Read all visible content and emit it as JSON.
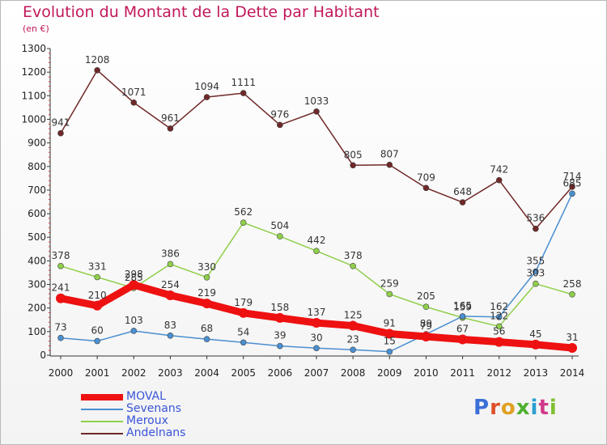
{
  "title": "Evolution du Montant de la Dette par Habitant",
  "subtitle": "(en €)",
  "logo_text": "Proxiti",
  "colors": {
    "title": "#c1185b",
    "MOVAL": "#ee1111",
    "Sevenans": "#4a8fd0",
    "Meroux": "#8fcf4a",
    "Andelnans": "#702828"
  },
  "chart_data": {
    "type": "line",
    "title": "Evolution du Montant de la Dette par Habitant",
    "ylabel": "(en €)",
    "ylim": [
      0,
      1300
    ],
    "yticks": [
      0,
      100,
      200,
      300,
      400,
      500,
      600,
      700,
      800,
      900,
      1000,
      1100,
      1200,
      1300
    ],
    "grid": false,
    "legend_position": "bottom-left",
    "x": [
      2000,
      2001,
      2002,
      2003,
      2004,
      2005,
      2006,
      2007,
      2008,
      2009,
      2010,
      2011,
      2012,
      2013,
      2014
    ],
    "series": [
      {
        "name": "MOVAL",
        "values": [
          241,
          210,
          298,
          254,
          219,
          179,
          158,
          137,
          125,
          91,
          79,
          67,
          56,
          45,
          31
        ],
        "labels": [
          "241",
          "210",
          "298",
          "254",
          "219",
          "179",
          "158",
          "137",
          "125",
          "91",
          "79",
          "67",
          "56",
          "45",
          "31"
        ]
      },
      {
        "name": "Sevenans",
        "values": [
          73,
          60,
          103,
          83,
          68,
          54,
          39,
          30,
          23,
          15,
          89,
          165,
          162,
          355,
          685
        ],
        "labels": [
          "73",
          "60",
          "103",
          "83",
          "68",
          "54",
          "39",
          "30",
          "23",
          "15",
          "89",
          "165",
          "162",
          "355",
          "685"
        ]
      },
      {
        "name": "Meroux",
        "values": [
          378,
          331,
          285,
          386,
          330,
          562,
          504,
          442,
          378,
          259,
          205,
          159,
          122,
          303,
          258
        ],
        "labels": [
          "378",
          "331",
          "285",
          "386",
          "330",
          "562",
          "504",
          "442",
          "378",
          "259",
          "205",
          "159",
          "122",
          "303",
          "258"
        ]
      },
      {
        "name": "Andelnans",
        "values": [
          941,
          1208,
          1071,
          961,
          1094,
          1111,
          976,
          1033,
          805,
          807,
          709,
          648,
          742,
          536,
          714
        ],
        "labels": [
          "941",
          "1208",
          "1071",
          "961",
          "1094",
          "1111",
          "976",
          "1033",
          "805",
          "807",
          "709",
          "648",
          "742",
          "536",
          "714"
        ]
      }
    ]
  }
}
